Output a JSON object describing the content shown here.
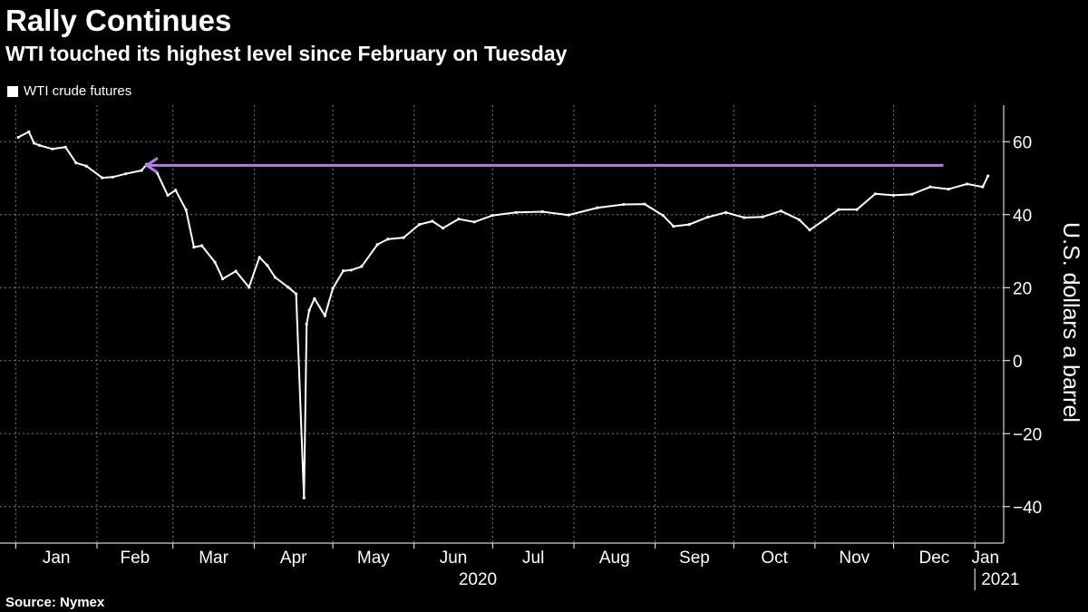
{
  "header": {
    "title": "Rally Continues",
    "subtitle": "WTI touched its highest level since February on Tuesday"
  },
  "legend": {
    "label": "WTI crude futures"
  },
  "footer": {
    "source": "Source: Nymex"
  },
  "colors": {
    "background": "#000000",
    "series": "#ffffff",
    "annotation_arrow": "#b57cf0",
    "grid": "#7a7a7a"
  },
  "chart_data": {
    "type": "line",
    "title": "Rally Continues",
    "subtitle": "WTI touched its highest level since February on Tuesday",
    "ylabel": "U.S. dollars a barrel",
    "xlabel": "",
    "ylim": [
      -50,
      70
    ],
    "yticks": [
      60,
      40,
      20,
      0,
      -20,
      -40
    ],
    "y_axis_side": "right",
    "grid": true,
    "legend_position": "top-left",
    "x_tick_labels": [
      "Jan",
      "Feb",
      "Mar",
      "Apr",
      "May",
      "Jun",
      "Jul",
      "Aug",
      "Sep",
      "Oct",
      "Nov",
      "Dec",
      "Jan"
    ],
    "year_labels": [
      "2020",
      "2021"
    ],
    "series": [
      {
        "name": "WTI crude futures",
        "x": [
          "2020-01-02",
          "2020-01-06",
          "2020-01-08",
          "2020-01-10",
          "2020-01-15",
          "2020-01-20",
          "2020-01-24",
          "2020-01-28",
          "2020-02-03",
          "2020-02-07",
          "2020-02-12",
          "2020-02-18",
          "2020-02-20",
          "2020-02-24",
          "2020-02-28",
          "2020-03-02",
          "2020-03-06",
          "2020-03-09",
          "2020-03-12",
          "2020-03-17",
          "2020-03-20",
          "2020-03-25",
          "2020-03-30",
          "2020-04-03",
          "2020-04-06",
          "2020-04-09",
          "2020-04-14",
          "2020-04-17",
          "2020-04-20",
          "2020-04-21",
          "2020-04-22",
          "2020-04-24",
          "2020-04-28",
          "2020-05-01",
          "2020-05-05",
          "2020-05-08",
          "2020-05-12",
          "2020-05-18",
          "2020-05-22",
          "2020-05-28",
          "2020-06-03",
          "2020-06-08",
          "2020-06-12",
          "2020-06-18",
          "2020-06-24",
          "2020-07-01",
          "2020-07-10",
          "2020-07-20",
          "2020-07-30",
          "2020-08-10",
          "2020-08-20",
          "2020-08-28",
          "2020-09-04",
          "2020-09-08",
          "2020-09-14",
          "2020-09-21",
          "2020-09-28",
          "2020-10-05",
          "2020-10-12",
          "2020-10-19",
          "2020-10-26",
          "2020-10-30",
          "2020-11-05",
          "2020-11-10",
          "2020-11-17",
          "2020-11-24",
          "2020-12-01",
          "2020-12-08",
          "2020-12-15",
          "2020-12-22",
          "2020-12-29",
          "2021-01-04",
          "2021-01-06"
        ],
        "y": [
          61.2,
          62.7,
          59.6,
          59.0,
          58.0,
          58.5,
          54.2,
          53.3,
          50.1,
          50.3,
          51.2,
          52.1,
          53.8,
          51.4,
          45.3,
          46.7,
          41.3,
          31.1,
          31.5,
          27.0,
          22.4,
          24.5,
          20.1,
          28.3,
          26.1,
          22.8,
          20.1,
          18.3,
          -37.6,
          10.0,
          13.8,
          17.0,
          12.3,
          19.8,
          24.6,
          24.8,
          25.8,
          31.8,
          33.3,
          33.7,
          37.3,
          38.2,
          36.3,
          38.8,
          38.0,
          39.8,
          40.6,
          40.8,
          39.9,
          41.9,
          42.8,
          42.9,
          39.8,
          36.8,
          37.3,
          39.3,
          40.6,
          39.2,
          39.4,
          41.0,
          38.6,
          35.8,
          38.8,
          41.4,
          41.4,
          45.7,
          45.3,
          45.6,
          47.6,
          47.0,
          48.4,
          47.6,
          50.6
        ]
      }
    ],
    "annotations": [
      {
        "type": "arrow",
        "from": {
          "x": "2020-12-20",
          "y": 53.5
        },
        "to": {
          "x": "2020-02-20",
          "y": 53.5
        }
      }
    ]
  }
}
